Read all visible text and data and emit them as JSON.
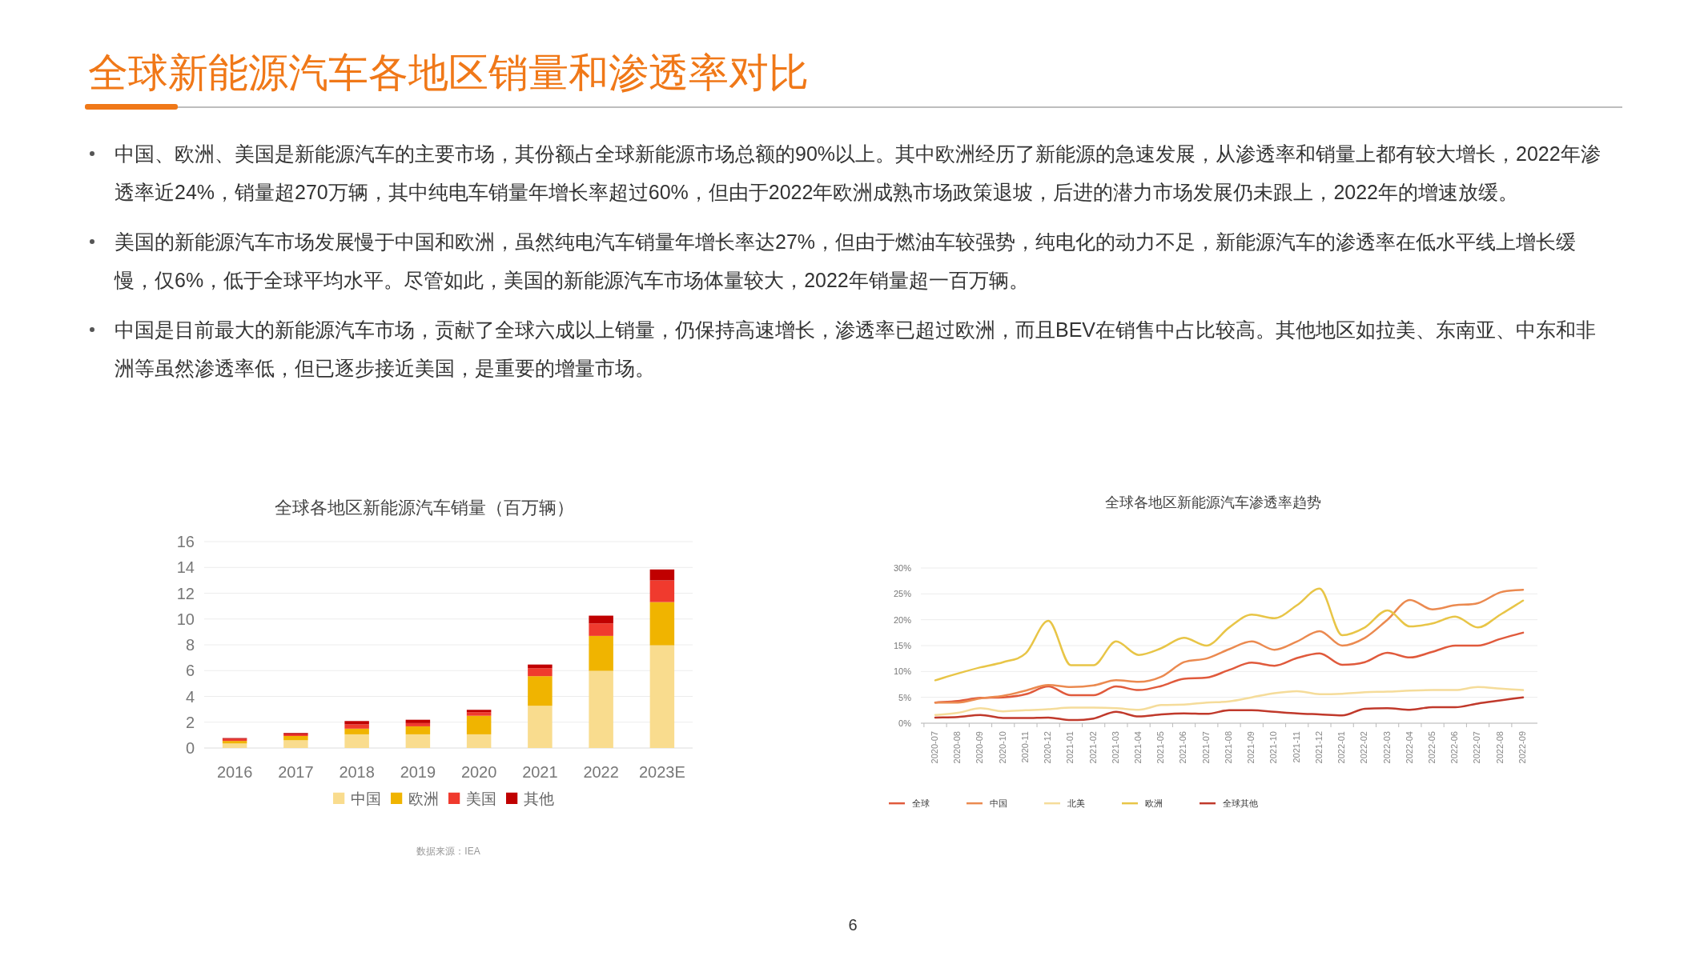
{
  "chart_data": [
    {
      "type": "other",
      "title": "全球新能源汽车各地区销量和渗透率对比",
      "annotations": [
        "中国、欧洲、美国是新能源汽车的主要市场，其份额占全球新能源市场总额的90%以上。其中欧洲经历了新能源的急速发展，从渗透率和销量上都有较大增长，2022年渗透率近24%，销量超270万辆，其中纯电车销量年增长率超过60%，但由于2022年欧洲成熟市场政策退坡，后进的潜力市场发展仍未跟上，2022年的增速放缓。",
        "美国的新能源汽车市场发展慢于中国和欧洲，虽然纯电汽车销量年增长率达27%，但由于燃油车较强势，纯电化的动力不足，新能源汽车的渗透率在低水平线上增长缓慢，仅6%，低于全球平均水平。尽管如此，美国的新能源汽车市场体量较大，2022年销量超一百万辆。",
        "中国是目前最大的新能源汽车市场，贡献了全球六成以上销量，仍保持高速增长，渗透率已超过欧洲，而且BEV在销售中占比较高。其他地区如拉美、东南亚、中东和非洲等虽然渗透率低，但已逐步接近美国，是重要的增量市场。",
        "6"
      ]
    },
    {
      "type": "bar",
      "title": "全球各地区新能源汽车销量（百万辆）",
      "stacked": true,
      "grid": "y",
      "legend": "bottom",
      "categories": [
        "2016",
        "2017",
        "2018",
        "2019",
        "2020",
        "2021",
        "2022",
        "2023E"
      ],
      "ylim": [
        0,
        16
      ],
      "yticks": [
        0,
        2,
        4,
        6,
        8,
        10,
        12,
        14,
        16
      ],
      "series": [
        {
          "name": "中国",
          "color": "#f9dc8e",
          "values": [
            0.35,
            0.6,
            1.06,
            1.06,
            1.06,
            3.27,
            5.98,
            7.96
          ]
        },
        {
          "name": "欧洲",
          "color": "#f0b400",
          "values": [
            0.2,
            0.33,
            0.44,
            0.62,
            1.44,
            2.3,
            2.71,
            3.35
          ]
        },
        {
          "name": "美国",
          "color": "#f03a2e",
          "values": [
            0.15,
            0.13,
            0.33,
            0.25,
            0.28,
            0.62,
            0.97,
            1.68
          ]
        },
        {
          "name": "其他",
          "color": "#c00000",
          "values": [
            0.07,
            0.1,
            0.26,
            0.26,
            0.18,
            0.28,
            0.6,
            0.85
          ]
        }
      ],
      "annotations": [
        "数据来源：IEA"
      ]
    },
    {
      "type": "line",
      "title": "全球各地区新能源汽车渗透率趋势",
      "grid": "y",
      "legend": "bottom",
      "marker": "none",
      "line_style": "solid",
      "categories": [
        "2020-07",
        "2020-08",
        "2020-09",
        "2020-10",
        "2020-11",
        "2020-12",
        "2021-01",
        "2021-02",
        "2021-03",
        "2021-04",
        "2021-05",
        "2021-06",
        "2021-07",
        "2021-08",
        "2021-09",
        "2021-10",
        "2021-11",
        "2021-12",
        "2022-01",
        "2022-02",
        "2022-03",
        "2022-04",
        "2022-05",
        "2022-06",
        "2022-07",
        "2022-08",
        "2022-09"
      ],
      "ylim": [
        0,
        30
      ],
      "yticks": [
        {
          "value": 0,
          "label": "0%"
        },
        {
          "value": 5,
          "label": "5%"
        },
        {
          "value": 10,
          "label": "10%"
        },
        {
          "value": 15,
          "label": "15%"
        },
        {
          "value": 20,
          "label": "20%"
        },
        {
          "value": 25,
          "label": "25%"
        },
        {
          "value": 30,
          "label": "30%"
        }
      ],
      "series": [
        {
          "name": "全球",
          "color": "#e05a3c",
          "values": [
            4.0,
            4.3,
            4.9,
            5.0,
            5.6,
            7.1,
            5.4,
            5.4,
            7.1,
            6.4,
            7.2,
            8.6,
            8.8,
            10.3,
            11.7,
            11.1,
            12.6,
            13.5,
            11.3,
            11.8,
            13.6,
            12.7,
            13.8,
            15.0,
            15.0,
            16.3,
            17.5
          ]
        },
        {
          "name": "中国",
          "color": "#eb8a50",
          "values": [
            4.0,
            4.0,
            4.8,
            5.3,
            6.3,
            7.4,
            7.0,
            7.3,
            8.3,
            8.0,
            9.0,
            11.8,
            12.5,
            14.3,
            15.8,
            14.2,
            15.8,
            17.8,
            15.0,
            16.5,
            20.0,
            23.8,
            22.0,
            22.8,
            23.2,
            25.3,
            25.8
          ]
        },
        {
          "name": "北美",
          "color": "#f5dc9a",
          "values": [
            1.6,
            2.0,
            2.9,
            2.3,
            2.5,
            2.7,
            3.0,
            3.0,
            2.9,
            2.6,
            3.5,
            3.6,
            4.0,
            4.2,
            5.0,
            5.8,
            6.2,
            5.6,
            5.7,
            6.0,
            6.1,
            6.3,
            6.4,
            6.4,
            7.0,
            6.7,
            6.4
          ]
        },
        {
          "name": "欧洲",
          "color": "#e8c547",
          "values": [
            8.3,
            9.6,
            10.8,
            11.8,
            13.5,
            19.8,
            11.2,
            11.2,
            15.8,
            13.2,
            14.5,
            16.5,
            15.0,
            18.5,
            21.0,
            20.3,
            22.8,
            26.0,
            17.0,
            18.5,
            21.8,
            18.7,
            19.3,
            20.6,
            18.5,
            21.0,
            23.7
          ]
        },
        {
          "name": "全球其他",
          "color": "#c0392b",
          "values": [
            1.1,
            1.2,
            1.6,
            1.0,
            1.0,
            1.1,
            0.6,
            0.9,
            2.2,
            1.3,
            1.7,
            1.9,
            1.8,
            2.5,
            2.5,
            2.2,
            1.9,
            1.7,
            1.5,
            2.8,
            2.9,
            2.6,
            3.1,
            3.1,
            3.8,
            4.4,
            5.0
          ]
        }
      ]
    }
  ]
}
